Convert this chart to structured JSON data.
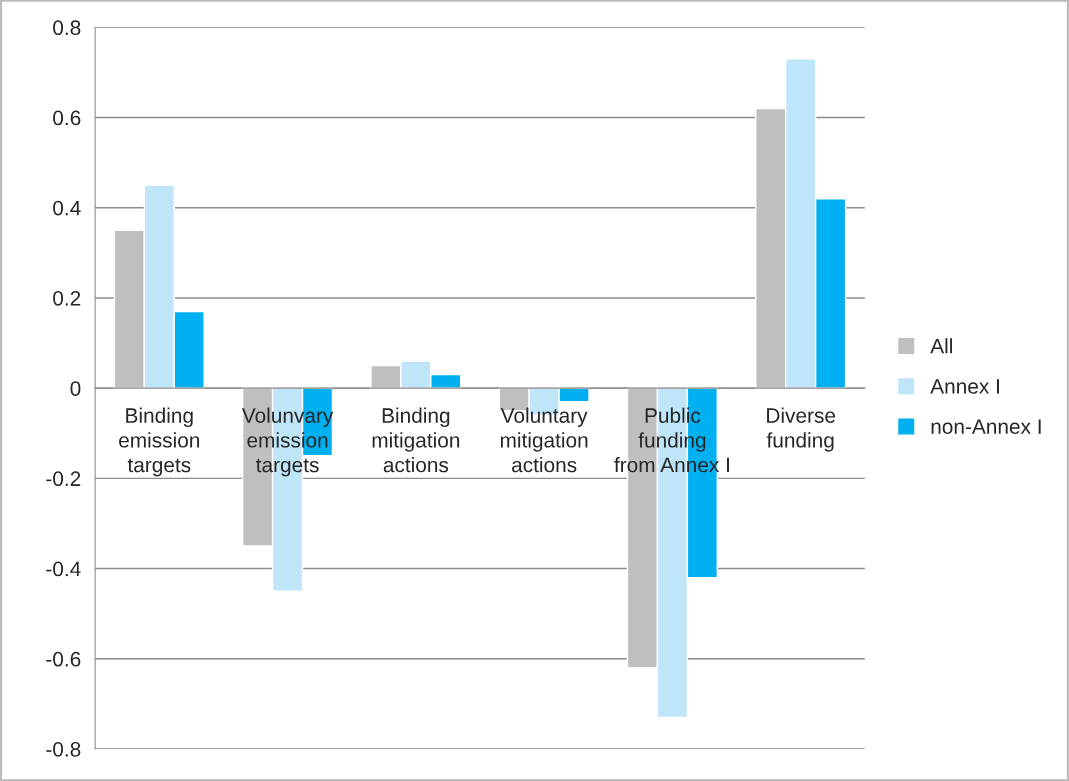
{
  "chart_data": {
    "type": "bar",
    "categories": [
      "Binding\nemission\ntargets",
      "Volunvary\nemission\ntargets",
      "Binding\nmitigation\nactions",
      "Voluntary\nmitigation\nactions",
      "Public\nfunding\nfrom Annex I",
      "Diverse\nfunding"
    ],
    "series": [
      {
        "name": "All",
        "color": "#bfbfbf",
        "values": [
          0.35,
          -0.35,
          0.05,
          -0.05,
          -0.62,
          0.62
        ]
      },
      {
        "name": "Annex I",
        "color": "#bee5f8",
        "values": [
          0.45,
          -0.45,
          0.06,
          -0.06,
          -0.73,
          0.73
        ]
      },
      {
        "name": "non-Annex I",
        "color": "#00b0f0",
        "values": [
          0.17,
          -0.15,
          0.03,
          -0.03,
          -0.42,
          0.42
        ]
      }
    ],
    "ylim": [
      -0.8,
      0.8
    ],
    "yticks": [
      -0.8,
      -0.6,
      -0.4,
      -0.2,
      0,
      0.2,
      0.4,
      0.6,
      0.8
    ],
    "grid": "y",
    "legend": "right"
  }
}
